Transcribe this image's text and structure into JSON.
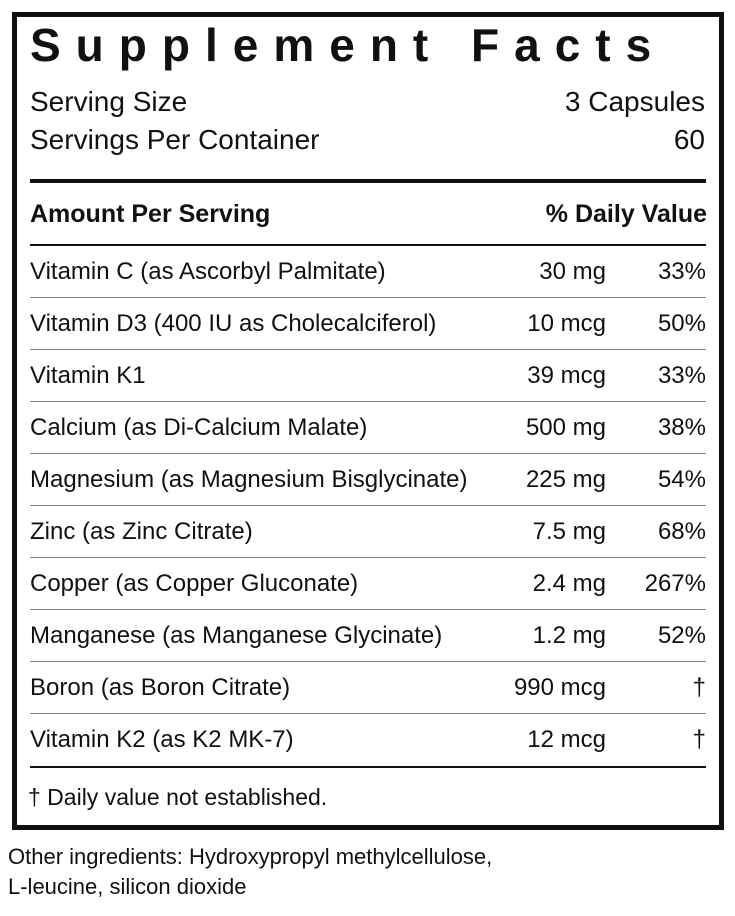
{
  "title": "Supplement Facts",
  "serving_size": {
    "label": "Serving Size",
    "value": "3 Capsules"
  },
  "servings_per_container": {
    "label": "Servings Per Container",
    "value": "60"
  },
  "header": {
    "amount": "Amount Per Serving",
    "daily_value": "% Daily Value"
  },
  "rows": [
    [
      "Vitamin C (as Ascorbyl Palmitate)",
      "30 mg",
      "33%"
    ],
    [
      "Vitamin D3 (400 IU as Cholecalciferol)",
      "10 mcg",
      "50%"
    ],
    [
      "Vitamin K1",
      "39 mcg",
      "33%"
    ],
    [
      "Calcium (as Di-Calcium Malate)",
      "500 mg",
      "38%"
    ],
    [
      "Magnesium (as Magnesium Bisglycinate)",
      "225 mg",
      "54%"
    ],
    [
      "Zinc (as Zinc Citrate)",
      "7.5 mg",
      "68%"
    ],
    [
      "Copper (as Copper Gluconate)",
      "2.4 mg",
      "267%"
    ],
    [
      "Manganese (as Manganese Glycinate)",
      "1.2 mg",
      "52%"
    ],
    [
      "Boron (as Boron Citrate)",
      "990 mcg",
      "†"
    ],
    [
      "Vitamin K2 (as K2 MK-7)",
      "12 mcg",
      "†"
    ]
  ],
  "footnote": "† Daily value not established.",
  "other_ingredients": [
    "Other ingredients: Hydroxypropyl methylcellulose,",
    "L-leucine, silicon dioxide"
  ]
}
